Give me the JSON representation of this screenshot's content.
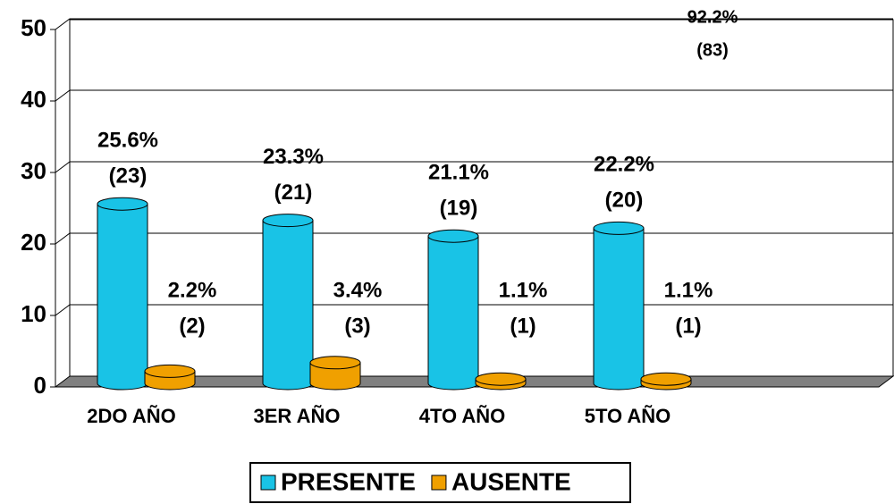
{
  "chart_data": {
    "type": "bar3d",
    "categories": [
      "2DO AÑO",
      "3ER AÑO",
      "4TO AÑO",
      "5TO AÑO",
      null
    ],
    "series": [
      {
        "name": "PRESENTE",
        "color": "#19c3e6",
        "values": [
          25.6,
          23.3,
          21.1,
          22.2,
          null
        ],
        "value_labels": [
          "25.6%",
          "23.3%",
          "21.1%",
          "22.2%",
          null
        ],
        "count_labels": [
          "(23)",
          "(21)",
          "(19)",
          "(20)",
          null
        ]
      },
      {
        "name": "AUSENTE",
        "color": "#f0a000",
        "values": [
          2.2,
          3.4,
          1.1,
          1.1,
          null
        ],
        "value_labels": [
          "2.2%",
          "3.4%",
          "1.1%",
          "1.1%",
          null
        ],
        "count_labels": [
          "(2)",
          "(3)",
          "(1)",
          "(1)",
          null
        ]
      }
    ],
    "annotations": [
      "92.2%",
      "(83)"
    ],
    "ylim": [
      0,
      50
    ],
    "yticks": [
      0,
      10,
      20,
      30,
      40,
      50
    ],
    "grid": true,
    "legend": "bottom"
  }
}
